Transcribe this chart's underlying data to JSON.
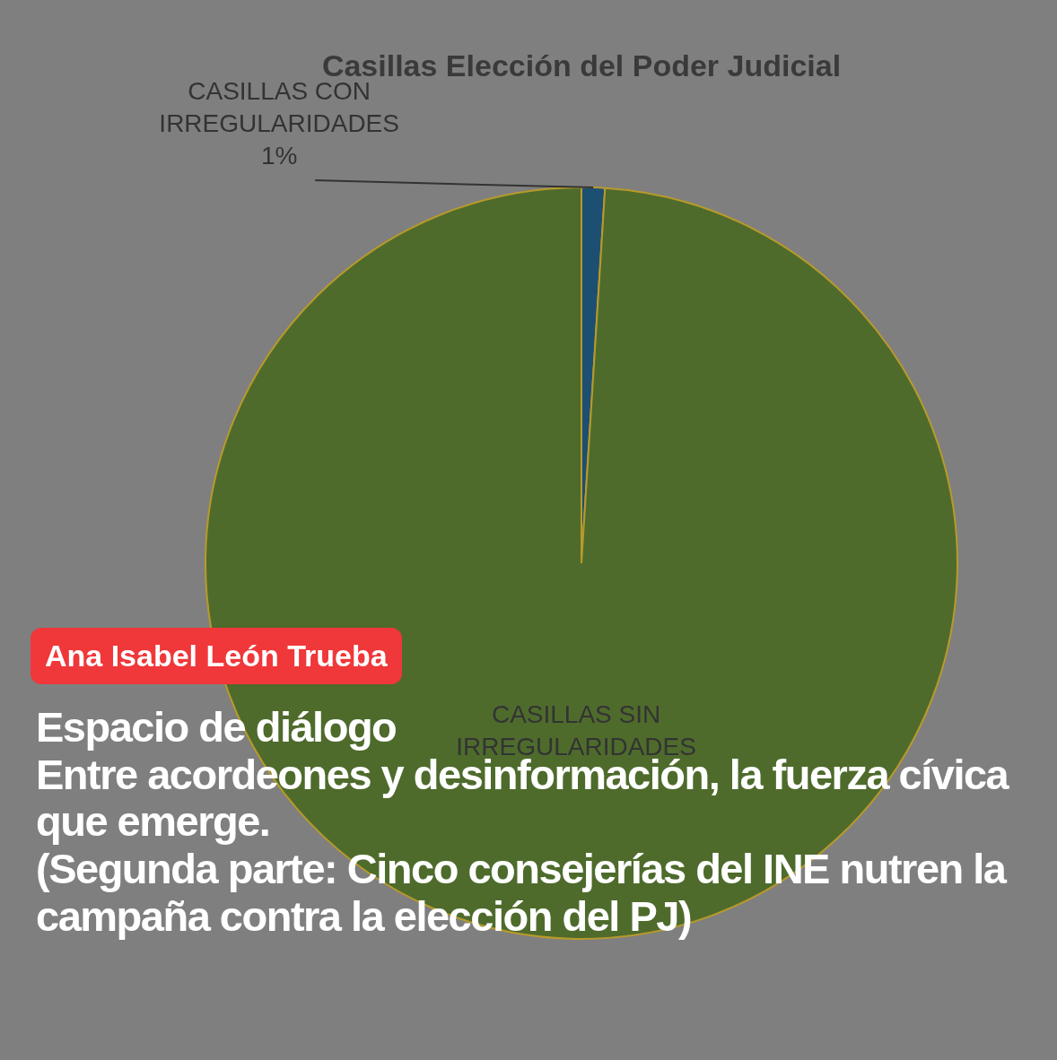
{
  "chart_data": {
    "type": "pie",
    "title": "Casillas Elección del Poder Judicial",
    "categories": [
      "CASILLAS CON IRREGULARIDADES",
      "CASILLAS SIN IRREGULARIDADES"
    ],
    "values": [
      1,
      99
    ],
    "colors": [
      "#1d4f73",
      "#4e6b2c"
    ],
    "value_labels": [
      "1%",
      null
    ],
    "annotations": [
      "Ana Isabel León Trueba",
      "Espacio de diálogo",
      "Entre acordeones y desinformación, la fuerza cívica que emerge.",
      "(Segunda parte: Cinco consejerías del INE nutren la campaña contra la elección del PJ)"
    ]
  }
}
